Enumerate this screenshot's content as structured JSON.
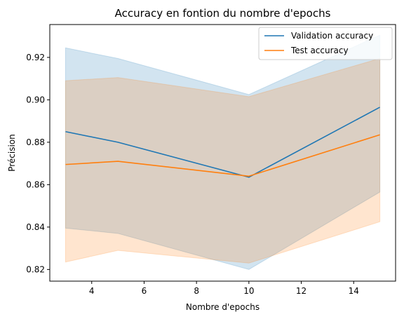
{
  "chart_data": {
    "type": "line",
    "title": "Accuracy en fontion du nombre d'epochs",
    "xlabel": "Nombre d'epochs",
    "ylabel": "Précision",
    "x": [
      3,
      5,
      10,
      15
    ],
    "xlim": [
      2.4,
      15.6
    ],
    "ylim": [
      0.8145,
      0.9355
    ],
    "xticks": [
      4,
      6,
      8,
      10,
      12,
      14
    ],
    "yticks": [
      0.82,
      0.84,
      0.86,
      0.88,
      0.9,
      0.92
    ],
    "xtick_labels": [
      "4",
      "6",
      "8",
      "10",
      "12",
      "14"
    ],
    "ytick_labels": [
      "0.82",
      "0.84",
      "0.86",
      "0.88",
      "0.90",
      "0.92"
    ],
    "grid": false,
    "legend_position": "top-right",
    "series": [
      {
        "name": "Validation accuracy",
        "color": "#1f77b4",
        "values": [
          0.885,
          0.88,
          0.8635,
          0.8965
        ],
        "band_upper": [
          0.9245,
          0.9195,
          0.9025,
          0.9305
        ],
        "band_lower": [
          0.8395,
          0.837,
          0.82,
          0.8565
        ]
      },
      {
        "name": "Test accuracy",
        "color": "#ff7f0e",
        "values": [
          0.8695,
          0.871,
          0.864,
          0.8835
        ],
        "band_upper": [
          0.909,
          0.9105,
          0.9015,
          0.9195
        ],
        "band_lower": [
          0.8235,
          0.829,
          0.823,
          0.8425
        ]
      }
    ]
  }
}
